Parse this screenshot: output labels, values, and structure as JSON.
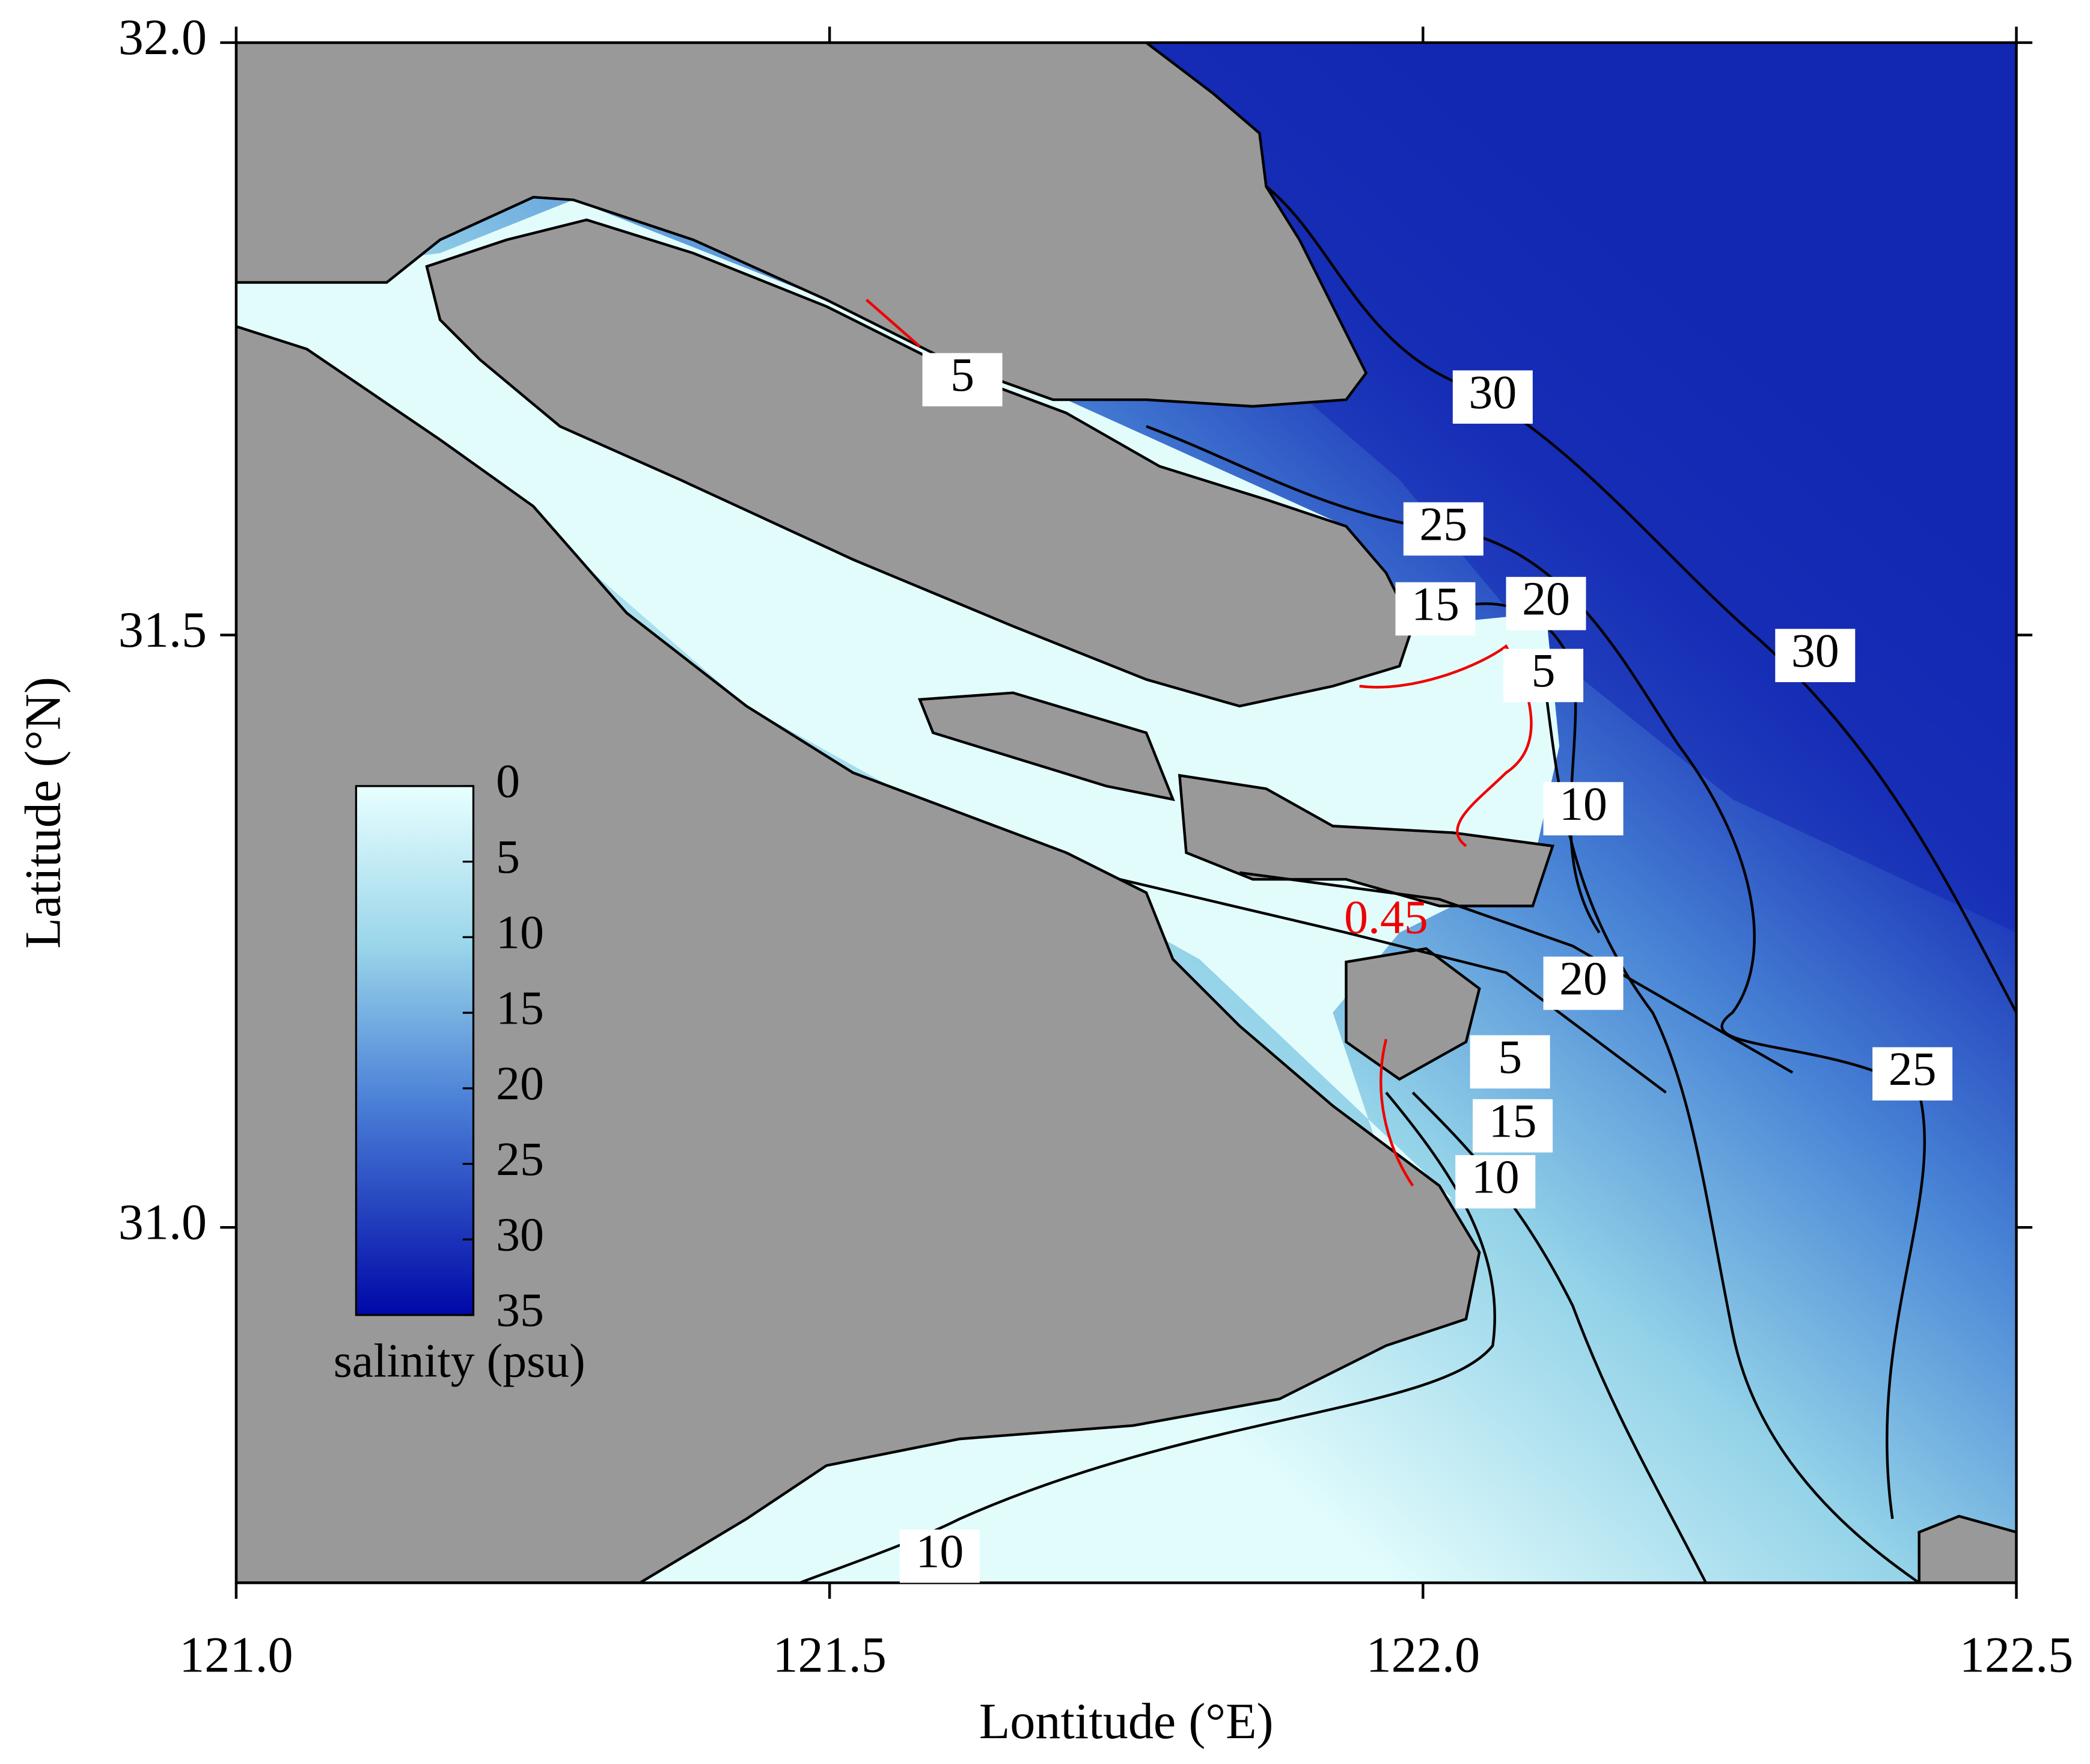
{
  "map": {
    "xlabel": "Lontitude (°E)",
    "ylabel": "Latitude (°N)",
    "xlim": [
      121.0,
      122.5
    ],
    "ylim": [
      30.7,
      32.0
    ],
    "xticks": [
      {
        "value": 121.0,
        "label": "121.0"
      },
      121.5,
      {
        "value": 122.0,
        "label": "122.0"
      },
      122.5
    ],
    "yticks": [
      {
        "value": 31.0,
        "label": "31.0"
      },
      31.5,
      {
        "value": 32.0,
        "label": "32.0"
      }
    ],
    "contour_labels": [
      30,
      30,
      25,
      15,
      20,
      5,
      10,
      0.45,
      20,
      25,
      5,
      15,
      10,
      10,
      5
    ],
    "colorbar": {
      "label": "salinity (psu)",
      "range": [
        0,
        35
      ],
      "ticks": [
        0,
        5,
        10,
        15,
        20,
        25,
        30,
        35
      ]
    }
  }
}
